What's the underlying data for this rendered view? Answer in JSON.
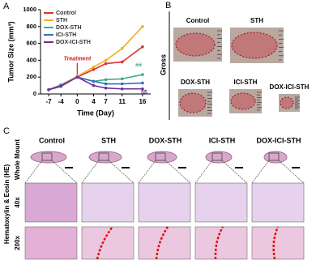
{
  "chart_data": {
    "type": "line",
    "panel_label": "A",
    "y_label": "Tumor Size (mm³)",
    "x_label": "Time (Day)",
    "x": [
      -7,
      -4,
      0,
      4,
      7,
      11,
      16
    ],
    "xlim": [
      -9,
      18
    ],
    "xticks": [
      -7,
      -4,
      0,
      4,
      7,
      11,
      16
    ],
    "ylim": [
      0,
      1000
    ],
    "yticks": [
      0,
      200,
      400,
      600,
      800,
      1000
    ],
    "legend": "top-left",
    "annotations": [
      "Treatment",
      "##",
      "$$"
    ],
    "series": [
      {
        "name": "Control",
        "color": "#e03030",
        "values": [
          50,
          110,
          200,
          290,
          360,
          380,
          560
        ]
      },
      {
        "name": "STH",
        "color": "#f0b020",
        "values": [
          50,
          110,
          210,
          320,
          400,
          540,
          800
        ]
      },
      {
        "name": "DOX-STH",
        "color": "#40b080",
        "values": [
          50,
          100,
          200,
          150,
          170,
          180,
          230
        ]
      },
      {
        "name": "ICI-STH",
        "color": "#3070c0",
        "values": [
          50,
          100,
          200,
          150,
          120,
          120,
          130
        ]
      },
      {
        "name": "DOX-ICI-STH",
        "color": "#703090",
        "values": [
          50,
          90,
          200,
          100,
          70,
          60,
          60
        ]
      }
    ]
  },
  "gross": {
    "panel_label": "B",
    "side_label": "Gross",
    "samples": [
      "Control",
      "STH",
      "DOX-STH",
      "ICI-STH",
      "DOX-ICI-STH"
    ]
  },
  "histology": {
    "panel_label": "C",
    "side_label": "Hematoxylin & Eosin (HE)",
    "row_labels": [
      "Whole Mount",
      "40x",
      "200x"
    ],
    "columns": [
      "Control",
      "STH",
      "DOX-STH",
      "ICI-STH",
      "DOX-ICI-STH"
    ]
  }
}
